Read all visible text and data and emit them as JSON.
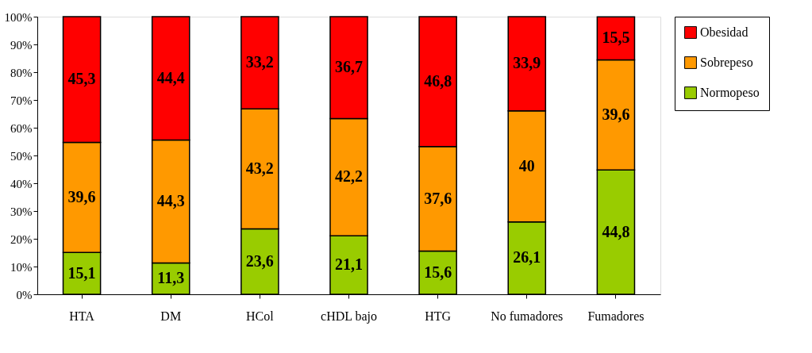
{
  "chart_data": {
    "type": "bar",
    "stacked": true,
    "legend": "right",
    "grid": false,
    "categories": [
      "HTA",
      "DM",
      "HCol",
      "cHDL bajo",
      "HTG",
      "No fumadores",
      "Fumadores"
    ],
    "ylim": [
      0,
      100
    ],
    "yticks": [
      {
        "value": 0,
        "label": "0%"
      },
      {
        "value": 10,
        "label": "10%"
      },
      {
        "value": 20,
        "label": "20%"
      },
      {
        "value": 30,
        "label": "30%"
      },
      {
        "value": 40,
        "label": "40%"
      },
      {
        "value": 50,
        "label": "50%"
      },
      {
        "value": 60,
        "label": "60%"
      },
      {
        "value": 70,
        "label": "70%"
      },
      {
        "value": 80,
        "label": "80%"
      },
      {
        "value": 90,
        "label": "90%"
      },
      {
        "value": 100,
        "label": "100%"
      }
    ],
    "series": [
      {
        "name": "Normopeso",
        "color": "#99cc00",
        "values": [
          15.1,
          11.3,
          23.6,
          21.1,
          15.6,
          26.1,
          44.8
        ],
        "value_labels": [
          "15,1",
          "11,3",
          "23,6",
          "21,1",
          "15,6",
          "26,1",
          "44,8"
        ]
      },
      {
        "name": "Sobrepeso",
        "color": "#ff9900",
        "values": [
          39.6,
          44.3,
          43.2,
          42.2,
          37.6,
          40,
          39.6
        ],
        "value_labels": [
          "39,6",
          "44,3",
          "43,2",
          "42,2",
          "37,6",
          "40",
          "39,6"
        ]
      },
      {
        "name": "Obesidad",
        "color": "#ff0000",
        "values": [
          45.3,
          44.4,
          33.2,
          36.7,
          46.8,
          33.9,
          15.5
        ],
        "value_labels": [
          "45,3",
          "44,4",
          "33,2",
          "36,7",
          "46,8",
          "33,9",
          "15,5"
        ]
      }
    ]
  }
}
